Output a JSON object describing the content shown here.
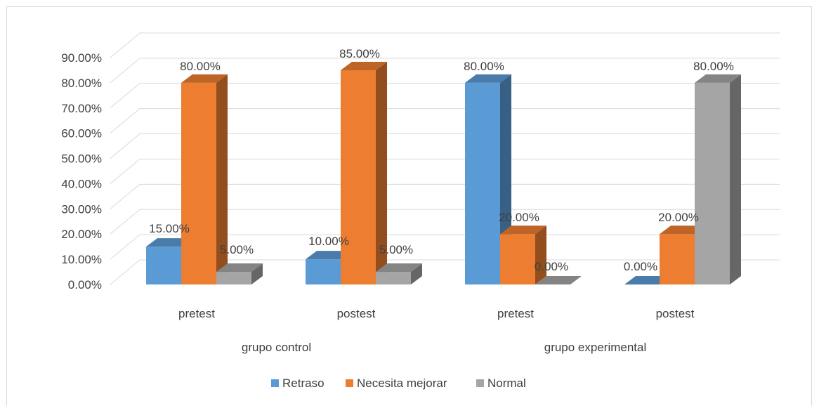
{
  "chart_data": {
    "type": "bar",
    "variant": "3d-clustered-column",
    "groups": [
      "grupo control",
      "grupo experimental"
    ],
    "categories": [
      "pretest",
      "postest",
      "pretest",
      "postest"
    ],
    "category_group": [
      0,
      0,
      1,
      1
    ],
    "series": [
      {
        "name": "Retraso",
        "color": "#5b9bd5",
        "values": [
          15.0,
          10.0,
          80.0,
          0.0
        ]
      },
      {
        "name": "Necesita mejorar",
        "color": "#ed7d31",
        "values": [
          80.0,
          85.0,
          20.0,
          20.0
        ]
      },
      {
        "name": "Normal",
        "color": "#a5a5a5",
        "values": [
          5.0,
          5.0,
          0.0,
          80.0
        ]
      }
    ],
    "data_labels": [
      [
        "15.00%",
        "10.00%",
        "80.00%",
        "0.00%"
      ],
      [
        "80.00%",
        "85.00%",
        "20.00%",
        "20.00%"
      ],
      [
        "5.00%",
        "5.00%",
        "0.00%",
        "80.00%"
      ]
    ],
    "y_ticks": [
      "0.00%",
      "10.00%",
      "20.00%",
      "30.00%",
      "40.00%",
      "50.00%",
      "60.00%",
      "70.00%",
      "80.00%",
      "90.00%"
    ],
    "ylim": [
      0,
      90
    ],
    "grid": true,
    "legend": "bottom",
    "title": "",
    "xlabel": "",
    "ylabel": ""
  }
}
